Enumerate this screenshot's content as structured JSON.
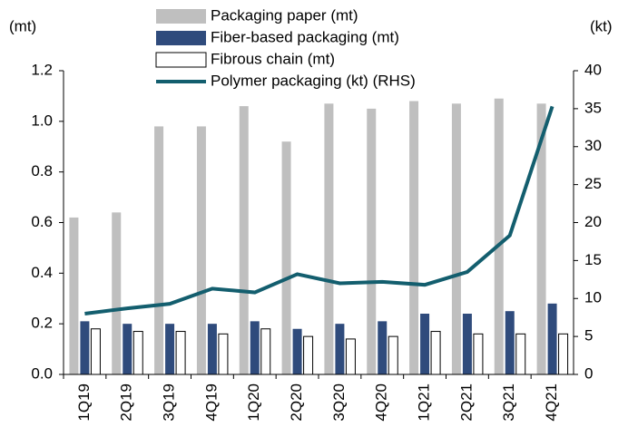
{
  "chart_data": {
    "type": "bar_line",
    "categories": [
      "1Q19",
      "2Q19",
      "3Q19",
      "4Q19",
      "1Q20",
      "2Q20",
      "3Q20",
      "4Q20",
      "1Q21",
      "2Q21",
      "3Q21",
      "4Q21"
    ],
    "series": [
      {
        "name": "Packaging paper (mt)",
        "color": "#bfbfbf",
        "type": "bar",
        "values": [
          0.62,
          0.64,
          0.98,
          0.98,
          1.06,
          0.92,
          1.07,
          1.05,
          1.08,
          1.07,
          1.09,
          1.07
        ]
      },
      {
        "name": "Fiber-based packaging (mt)",
        "color": "#2f4b7c",
        "type": "bar",
        "values": [
          0.21,
          0.2,
          0.2,
          0.2,
          0.21,
          0.18,
          0.2,
          0.21,
          0.24,
          0.24,
          0.25,
          0.28
        ]
      },
      {
        "name": "Fibrous chain (mt)",
        "color": "#ffffff",
        "type": "bar",
        "values": [
          0.18,
          0.17,
          0.17,
          0.16,
          0.18,
          0.15,
          0.14,
          0.15,
          0.17,
          0.16,
          0.16,
          0.16
        ]
      },
      {
        "name": "Polymer packaging (kt) (RHS)",
        "color": "#135e6e",
        "type": "line",
        "axis": "y2",
        "values": [
          8,
          8.7,
          9.3,
          11.3,
          10.8,
          13.2,
          12.0,
          12.2,
          11.8,
          13.5,
          18.3,
          35.3
        ]
      }
    ],
    "y_label": "(mt)",
    "y2_label": "(kt)",
    "ylim": [
      0,
      1.2
    ],
    "yticks": [
      {
        "value": 0,
        "label": "0.0"
      },
      {
        "value": 0.2,
        "label": "0.2"
      },
      {
        "value": 0.4,
        "label": "0.4"
      },
      {
        "value": 0.6,
        "label": "0.6"
      },
      {
        "value": 0.8,
        "label": "0.8"
      },
      {
        "value": 1,
        "label": "1.0"
      },
      {
        "value": 1.2,
        "label": "1.2"
      }
    ],
    "y2lim": [
      0,
      40
    ],
    "y2ticks": [
      0,
      5,
      10,
      15,
      20,
      25,
      30,
      35,
      40
    ],
    "legend": "top"
  }
}
